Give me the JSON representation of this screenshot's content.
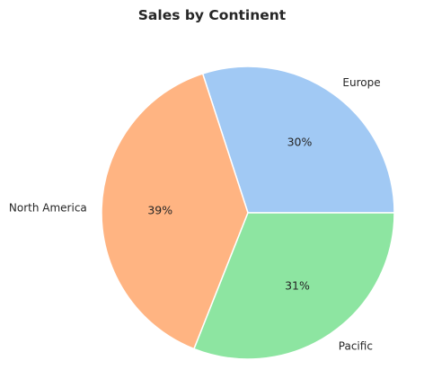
{
  "chart_data": {
    "type": "pie",
    "title": "Sales by Continent",
    "categories": [
      "Europe",
      "North America",
      "Pacific"
    ],
    "values": [
      30,
      39,
      31
    ],
    "value_labels": [
      "30%",
      "39%",
      "31%"
    ],
    "colors": [
      "#a1c9f4",
      "#ffb482",
      "#8de5a1"
    ],
    "start_angle_deg": 0,
    "direction": "counterclockwise",
    "wedge_edge_color": "#ffffff",
    "legend": "none"
  }
}
